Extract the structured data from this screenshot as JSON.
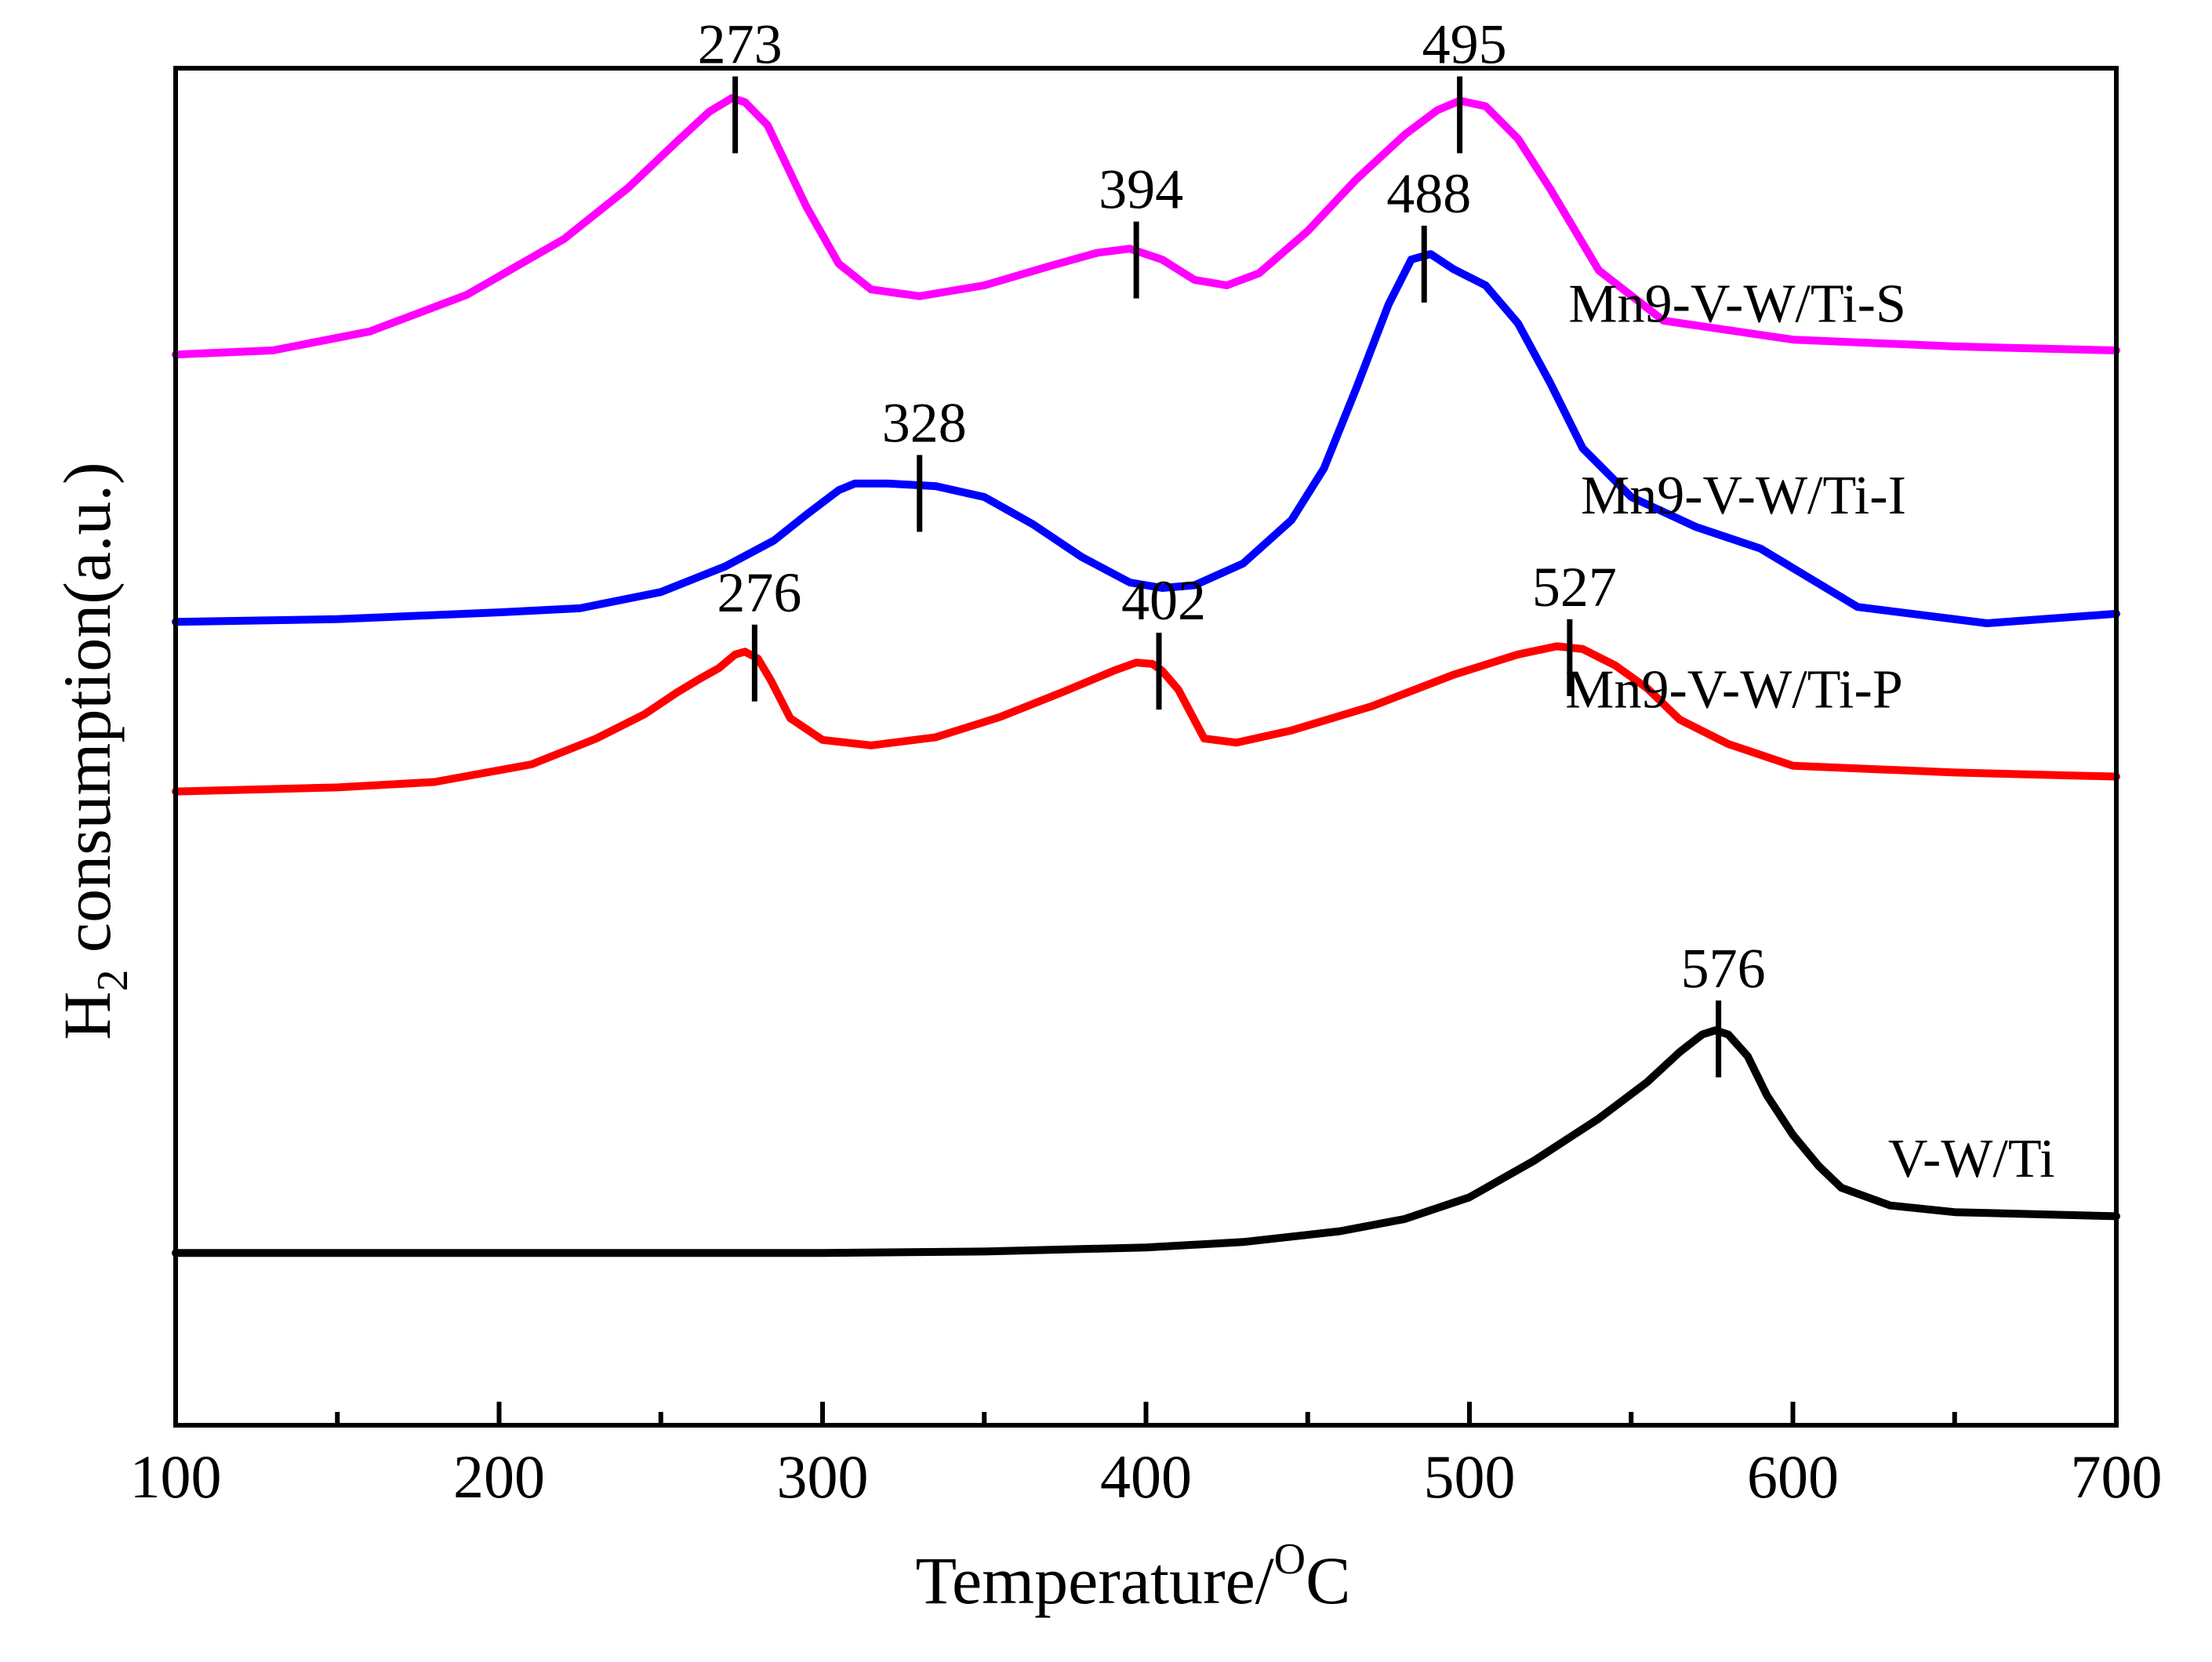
{
  "chart_data": {
    "type": "line",
    "xlabel": {
      "main": "Temperature/",
      "superscript": "O",
      "tail": "C"
    },
    "ylabel": {
      "main": "H",
      "subscript": "2",
      "tail": " consumption(a.u.)"
    },
    "xlim": [
      100,
      700
    ],
    "ylim": [
      0,
      1
    ],
    "xticks": [
      100,
      200,
      300,
      400,
      500,
      600,
      700
    ],
    "minor_xticks": [
      150,
      250,
      350,
      450,
      550,
      650
    ],
    "tick_labels": [
      "100",
      "200",
      "300",
      "400",
      "500",
      "600",
      "700"
    ],
    "grid": false,
    "series": [
      {
        "name": "Mn9-V-W/Ti-S",
        "color": "#ff00ff",
        "label_at": [
          635,
          0.813
        ],
        "x": [
          100,
          130,
          160,
          190,
          220,
          240,
          255,
          265,
          272,
          276,
          283,
          295,
          305,
          315,
          330,
          350,
          370,
          385,
          395,
          405,
          415,
          425,
          435,
          450,
          465,
          480,
          490,
          497,
          505,
          515,
          525,
          540,
          560,
          600,
          650,
          700
        ],
        "y": [
          0.789,
          0.792,
          0.806,
          0.833,
          0.874,
          0.912,
          0.946,
          0.968,
          0.978,
          0.975,
          0.958,
          0.898,
          0.856,
          0.837,
          0.832,
          0.84,
          0.854,
          0.864,
          0.867,
          0.859,
          0.844,
          0.84,
          0.849,
          0.88,
          0.918,
          0.951,
          0.969,
          0.976,
          0.972,
          0.948,
          0.911,
          0.851,
          0.814,
          0.8,
          0.795,
          0.792
        ]
      },
      {
        "name": "Mn9-V-W/Ti-I",
        "color": "#0000ff",
        "label_at": [
          635,
          0.672
        ],
        "x": [
          100,
          150,
          200,
          225,
          250,
          270,
          285,
          295,
          305,
          310,
          320,
          335,
          350,
          365,
          380,
          395,
          405,
          415,
          430,
          445,
          455,
          465,
          475,
          482,
          488,
          495,
          505,
          515,
          525,
          535,
          550,
          570,
          590,
          620,
          660,
          700
        ],
        "y": [
          0.592,
          0.594,
          0.599,
          0.602,
          0.614,
          0.633,
          0.652,
          0.671,
          0.689,
          0.694,
          0.694,
          0.692,
          0.684,
          0.664,
          0.64,
          0.621,
          0.617,
          0.619,
          0.635,
          0.667,
          0.705,
          0.764,
          0.826,
          0.859,
          0.863,
          0.852,
          0.84,
          0.812,
          0.768,
          0.72,
          0.684,
          0.662,
          0.646,
          0.603,
          0.591,
          0.598
        ]
      },
      {
        "name": "Mn9-V-W/Ti-P",
        "color": "#ff0000",
        "label_at": [
          634,
          0.529
        ],
        "x": [
          100,
          150,
          180,
          210,
          230,
          245,
          255,
          262,
          268,
          273,
          276,
          280,
          284,
          290,
          300,
          315,
          335,
          355,
          375,
          390,
          397,
          402,
          405,
          410,
          418,
          428,
          445,
          470,
          495,
          515,
          527,
          535,
          545,
          555,
          565,
          580,
          600,
          650,
          700
        ],
        "y": [
          0.467,
          0.47,
          0.474,
          0.487,
          0.506,
          0.524,
          0.54,
          0.55,
          0.558,
          0.568,
          0.57,
          0.565,
          0.549,
          0.521,
          0.505,
          0.501,
          0.507,
          0.522,
          0.541,
          0.556,
          0.562,
          0.561,
          0.556,
          0.542,
          0.506,
          0.503,
          0.512,
          0.53,
          0.553,
          0.568,
          0.574,
          0.572,
          0.56,
          0.543,
          0.52,
          0.502,
          0.486,
          0.481,
          0.478
        ]
      },
      {
        "name": "V-W/Ti",
        "color": "#000000",
        "label_at": [
          681,
          0.183
        ],
        "x": [
          100,
          150,
          200,
          250,
          300,
          350,
          400,
          430,
          460,
          480,
          500,
          520,
          540,
          555,
          565,
          572,
          576,
          580,
          586,
          592,
          600,
          608,
          615,
          630,
          650,
          700
        ],
        "y": [
          0.127,
          0.127,
          0.127,
          0.127,
          0.127,
          0.128,
          0.131,
          0.135,
          0.143,
          0.152,
          0.168,
          0.195,
          0.226,
          0.253,
          0.275,
          0.288,
          0.291,
          0.288,
          0.272,
          0.243,
          0.214,
          0.191,
          0.175,
          0.162,
          0.157,
          0.154
        ]
      }
    ],
    "annotations": [
      {
        "text": "273",
        "x": 273,
        "y": 0.972,
        "color": "#000000"
      },
      {
        "text": "394",
        "x": 397,
        "y": 0.865,
        "color": "#000000"
      },
      {
        "text": "495",
        "x": 497,
        "y": 0.972,
        "color": "#000000"
      },
      {
        "text": "328",
        "x": 330,
        "y": 0.693,
        "color": "#000000"
      },
      {
        "text": "488",
        "x": 486,
        "y": 0.862,
        "color": "#000000"
      },
      {
        "text": "276",
        "x": 279,
        "y": 0.568,
        "color": "#000000"
      },
      {
        "text": "402",
        "x": 404,
        "y": 0.562,
        "color": "#000000"
      },
      {
        "text": "527",
        "x": 531,
        "y": 0.572,
        "color": "#000000"
      },
      {
        "text": "576",
        "x": 577,
        "y": 0.291,
        "color": "#000000"
      }
    ]
  }
}
